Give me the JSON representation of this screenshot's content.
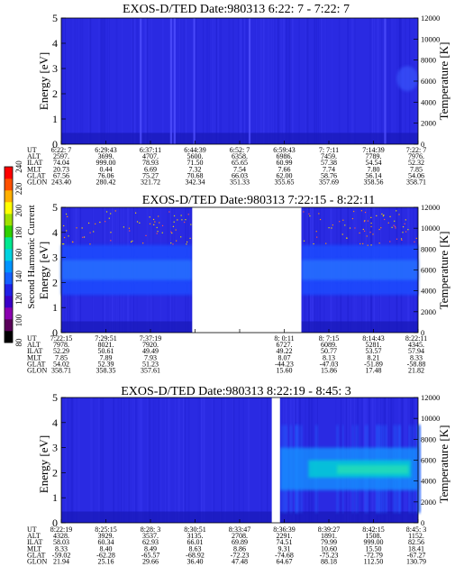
{
  "colorbar": {
    "label": "Second Harmonic Current",
    "ticks": [
      "80",
      "100",
      "120",
      "140",
      "160",
      "180",
      "200",
      "220",
      "240"
    ],
    "colors": [
      "#000000",
      "#5a005a",
      "#8a00b0",
      "#3a00c8",
      "#2020e6",
      "#1560ff",
      "#0094ff",
      "#00d2e0",
      "#00e890",
      "#30d000",
      "#a0e000",
      "#ffff00",
      "#ffb000",
      "#ff5000",
      "#ff0000"
    ]
  },
  "chart_data": [
    {
      "type": "heatmap",
      "title": "EXOS-D/TED   Date:980313   6:22: 7 - 7:22: 7",
      "ylabel": "Energy [eV]",
      "ylabel2": "Temperature [K]",
      "ylim": [
        0,
        5
      ],
      "yticks": [
        "0",
        "1",
        "2",
        "3",
        "4",
        "5"
      ],
      "y2lim": [
        0,
        12000
      ],
      "y2ticks": [
        "0",
        "2000",
        "4000",
        "6000",
        "8000",
        "10000",
        "12000"
      ],
      "data_gaps": [],
      "intense_band": null,
      "ephemeris_rows": [
        "UT",
        "ALT",
        "ILAT",
        "MLT",
        "GLAT",
        "GLON"
      ],
      "ephemeris": [
        [
          "6:22: 7",
          "2597.",
          "74.04",
          "20.73",
          "67.56",
          "243.40"
        ],
        [
          "6:29:43",
          "3699.",
          "999.00",
          "0.44",
          "76.06",
          "280.42"
        ],
        [
          "6:37:11",
          "4707.",
          "78.93",
          "6.69",
          "75.27",
          "321.72"
        ],
        [
          "6:44:39",
          "5600.",
          "71.50",
          "7.32",
          "70.68",
          "342.34"
        ],
        [
          "6:52: 7",
          "6358.",
          "65.65",
          "7.54",
          "66.03",
          "351.33"
        ],
        [
          "6:59:43",
          "6986.",
          "60.99",
          "7.66",
          "62.00",
          "355.65"
        ],
        [
          "7: 7:11",
          "7459.",
          "57.38",
          "7.74",
          "58.76",
          "357.69"
        ],
        [
          "7:14:39",
          "7789.",
          "54.54",
          "7.80",
          "56.14",
          "358.56"
        ],
        [
          "7:22: 7",
          "7976.",
          "52.32",
          "7.85",
          "54.06",
          "358.71"
        ]
      ]
    },
    {
      "type": "heatmap",
      "title": "EXOS-D/TED   Date:980313   7:22:15 - 8:22:11",
      "ylabel": "Energy [eV]",
      "ylabel2": "Temperature [K]",
      "ylim": [
        0,
        5
      ],
      "yticks": [
        "0",
        "1",
        "2",
        "3",
        "4",
        "5"
      ],
      "y2lim": [
        0,
        12000
      ],
      "y2ticks": [
        "0",
        "2000",
        "4000",
        "6000",
        "8000",
        "10000",
        "12000"
      ],
      "data_gaps": [
        [
          0.367,
          0.673
        ]
      ],
      "intense_band": [
        1.5,
        3.5
      ],
      "ephemeris_rows": [
        "UT",
        "ALT",
        "ILAT",
        "MLT",
        "GLAT",
        "GLON"
      ],
      "ephemeris": [
        [
          "7:22:15",
          "7978.",
          "52.29",
          "7.85",
          "54.02",
          "358.71"
        ],
        [
          "7:29:51",
          "8021.",
          "50.61",
          "7.89",
          "52.39",
          "358.35"
        ],
        [
          "7:37:19",
          "7920.",
          "49.49",
          "7.93",
          "51.23",
          "357.61"
        ],
        [
          "",
          "",
          "",
          "",
          "",
          ""
        ],
        [
          "",
          "",
          "",
          "",
          "",
          ""
        ],
        [
          "8: 0:11",
          "6727.",
          "49.22",
          "8.07",
          "-44.23",
          "15.60"
        ],
        [
          "8: 7:15",
          "6089.",
          "50.77",
          "8.13",
          "-47.03",
          "15.86"
        ],
        [
          "8:14:43",
          "5281.",
          "53.57",
          "8.21",
          "-51.89",
          "17.48"
        ],
        [
          "8:22:11",
          "4345.",
          "57.94",
          "8.33",
          "-58.88",
          "21.82"
        ]
      ]
    },
    {
      "type": "heatmap",
      "title": "EXOS-D/TED   Date:980313   8:22:19 - 8:45: 3",
      "ylabel": "Energy [eV]",
      "ylabel2": "Temperature [K]",
      "ylim": [
        0,
        5
      ],
      "yticks": [
        "0",
        "1",
        "2",
        "3",
        "4",
        "5"
      ],
      "y2lim": [
        0,
        12000
      ],
      "y2ticks": [
        "0",
        "2000",
        "4000",
        "6000",
        "8000",
        "10000",
        "12000"
      ],
      "data_gaps": [
        [
          0.59,
          0.613
        ]
      ],
      "intense_band": [
        1.3,
        3.0
      ],
      "ephemeris_rows": [
        "UT",
        "ALT",
        "ILAT",
        "MLT",
        "GLAT",
        "GLON"
      ],
      "ephemeris": [
        [
          "8:22:19",
          "4328.",
          "58.03",
          "8.33",
          "-59.02",
          "21.94"
        ],
        [
          "8:25:15",
          "3929.",
          "60.34",
          "8.40",
          "-62.28",
          "25.16"
        ],
        [
          "8:28: 3",
          "3537.",
          "62.93",
          "8.49",
          "-65.57",
          "29.66"
        ],
        [
          "8:30:51",
          "3135.",
          "66.01",
          "8.63",
          "-68.92",
          "36.40"
        ],
        [
          "8:33:47",
          "2708.",
          "69.89",
          "8.86",
          "-72.23",
          "47.48"
        ],
        [
          "8:36:39",
          "2291.",
          "74.51",
          "9.31",
          "-74.68",
          "64.67"
        ],
        [
          "8:39:27",
          "1891.",
          "79.99",
          "10.60",
          "-75.23",
          "88.18"
        ],
        [
          "8:42:15",
          "1508.",
          "999.00",
          "15.50",
          "-72.79",
          "112.50"
        ],
        [
          "8:45: 3",
          "1152.",
          "82.56",
          "18.41",
          "-67.27",
          "130.79"
        ]
      ]
    }
  ]
}
